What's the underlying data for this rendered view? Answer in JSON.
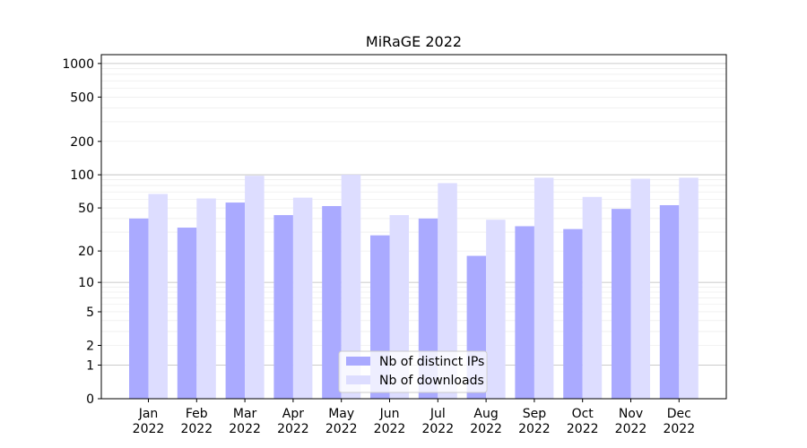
{
  "chart_data": {
    "type": "bar",
    "title": "MiRaGE 2022",
    "xlabel": "",
    "ylabel": "",
    "categories": [
      [
        "Jan",
        "2022"
      ],
      [
        "Feb",
        "2022"
      ],
      [
        "Mar",
        "2022"
      ],
      [
        "Apr",
        "2022"
      ],
      [
        "May",
        "2022"
      ],
      [
        "Jun",
        "2022"
      ],
      [
        "Jul",
        "2022"
      ],
      [
        "Aug",
        "2022"
      ],
      [
        "Sep",
        "2022"
      ],
      [
        "Oct",
        "2022"
      ],
      [
        "Nov",
        "2022"
      ],
      [
        "Dec",
        "2022"
      ]
    ],
    "series": [
      {
        "name": "Nb of distinct IPs",
        "color": "#aaaaff",
        "values": [
          40,
          33,
          56,
          43,
          52,
          28,
          40,
          18,
          34,
          32,
          49,
          53
        ]
      },
      {
        "name": "Nb of downloads",
        "color": "#ddddff",
        "values": [
          67,
          61,
          98,
          62,
          100,
          43,
          84,
          39,
          94,
          63,
          92,
          94
        ]
      }
    ],
    "y_scale": "log(1+y)",
    "ylim": [
      0,
      1200
    ],
    "y_ticks": [
      0,
      1,
      2,
      5,
      10,
      20,
      50,
      100,
      200,
      500,
      1000
    ],
    "grid": true,
    "legend_position": "lower-center"
  }
}
